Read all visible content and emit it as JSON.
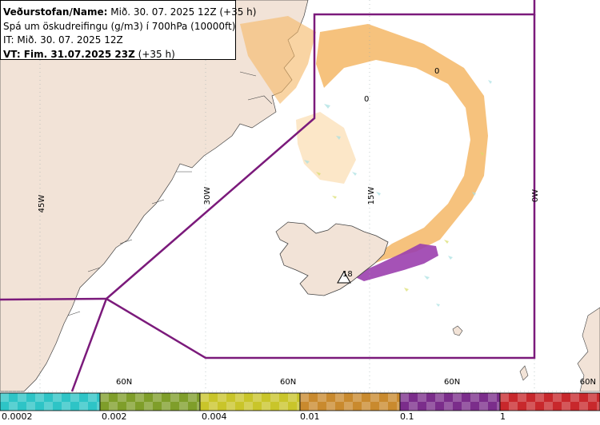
{
  "info": {
    "line1_label": "Veðurstofan/Name:",
    "line1_value": " Mið. 30. 07. 2025 12Z (+35 h)",
    "line2": "Spá um öskudreifingu (g/m3) í 700hPa (10000ft)",
    "line3": "IT: Mið. 30. 07. 2025 12Z",
    "line4_label": "VT: Fim. 31.07.2025 23Z",
    "line4_value": " (+35 h)"
  },
  "graticule": {
    "lon_labels": [
      "45W",
      "30W",
      "15W",
      "0W"
    ],
    "lat_labels": [
      "60N",
      "60N",
      "60N",
      "60N"
    ]
  },
  "contour_labels": [
    "0",
    "0",
    "18"
  ],
  "legend": {
    "labels": [
      "0.0002",
      "0.002",
      "0.004",
      "0.01",
      "0.1",
      "1"
    ],
    "colors": [
      "#2ec4c6",
      "#7f9e2a",
      "#c9c52a",
      "#c98a2e",
      "#7b2d8b",
      "#c8282c"
    ]
  },
  "colors": {
    "land": "#f2e3d7",
    "sea": "#ffffff",
    "airspace_boundary": "#7b1a7b",
    "ash_low": "#f5b766",
    "ash_high": "#9b3fae"
  }
}
